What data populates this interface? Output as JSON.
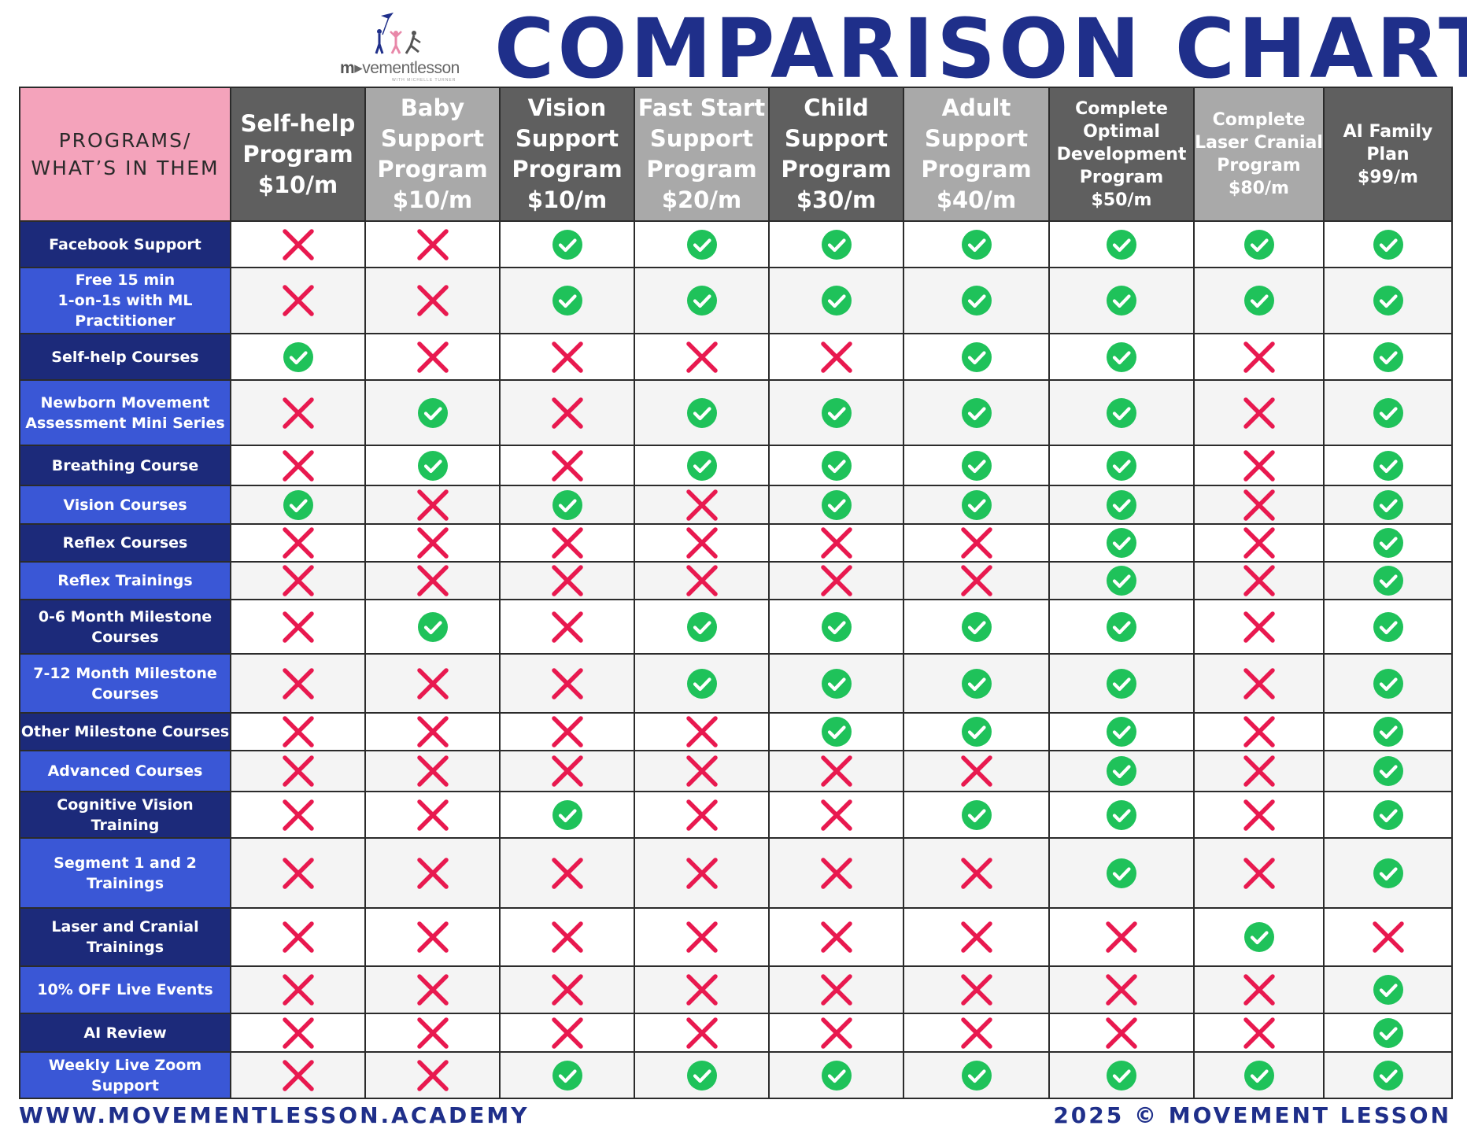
{
  "logo": {
    "brand_prefix": "m",
    "brand_rest": "vementlesson",
    "tagline": "WITH MICHELLE TURNER"
  },
  "title": "COMPARISON CHART",
  "corner_header": [
    "PROGRAMS/",
    "WHAT’S IN THEM"
  ],
  "plans": [
    {
      "lines": [
        "Self-help",
        "Program",
        "$10/m"
      ],
      "shade": "dark"
    },
    {
      "lines": [
        "Baby",
        "Support",
        "Program",
        "$10/m"
      ],
      "shade": "light"
    },
    {
      "lines": [
        "Vision",
        "Support",
        "Program",
        "$10/m"
      ],
      "shade": "dark"
    },
    {
      "lines": [
        "Fast Start",
        "Support",
        "Program",
        "$20/m"
      ],
      "shade": "light"
    },
    {
      "lines": [
        "Child",
        "Support",
        "Program",
        "$30/m"
      ],
      "shade": "dark"
    },
    {
      "lines": [
        "Adult",
        "Support",
        "Program",
        "$40/m"
      ],
      "shade": "light"
    },
    {
      "lines": [
        "Complete",
        "Optimal",
        "Development",
        "Program",
        "$50/m"
      ],
      "shade": "dark"
    },
    {
      "lines": [
        "Complete",
        "Laser Cranial",
        "Program",
        "$80/m"
      ],
      "shade": "light"
    },
    {
      "lines": [
        "AI Family",
        "Plan",
        "$99/m"
      ],
      "shade": "dark"
    }
  ],
  "features": [
    {
      "lines": [
        "Facebook Support"
      ],
      "values": [
        0,
        0,
        1,
        1,
        1,
        1,
        1,
        1,
        1
      ]
    },
    {
      "lines": [
        "Free 15 min",
        "1-on-1s with ML",
        "Practitioner"
      ],
      "values": [
        0,
        0,
        1,
        1,
        1,
        1,
        1,
        1,
        1
      ]
    },
    {
      "lines": [
        "Self-help Courses"
      ],
      "values": [
        1,
        0,
        0,
        0,
        0,
        1,
        1,
        0,
        1
      ]
    },
    {
      "lines": [
        "Newborn Movement",
        "Assessment Mini Series"
      ],
      "values": [
        0,
        1,
        0,
        1,
        1,
        1,
        1,
        0,
        1
      ]
    },
    {
      "lines": [
        "Breathing Course"
      ],
      "values": [
        0,
        1,
        0,
        1,
        1,
        1,
        1,
        0,
        1
      ]
    },
    {
      "lines": [
        "Vision Courses"
      ],
      "values": [
        1,
        0,
        1,
        0,
        1,
        1,
        1,
        0,
        1
      ]
    },
    {
      "lines": [
        "Reflex Courses"
      ],
      "values": [
        0,
        0,
        0,
        0,
        0,
        0,
        1,
        0,
        1
      ]
    },
    {
      "lines": [
        "Reflex Trainings"
      ],
      "values": [
        0,
        0,
        0,
        0,
        0,
        0,
        1,
        0,
        1
      ]
    },
    {
      "lines": [
        "0-6 Month Milestone",
        "Courses"
      ],
      "values": [
        0,
        1,
        0,
        1,
        1,
        1,
        1,
        0,
        1
      ]
    },
    {
      "lines": [
        "7-12 Month Milestone",
        "Courses"
      ],
      "values": [
        0,
        0,
        0,
        1,
        1,
        1,
        1,
        0,
        1
      ]
    },
    {
      "lines": [
        "Other Milestone Courses"
      ],
      "values": [
        0,
        0,
        0,
        0,
        1,
        1,
        1,
        0,
        1
      ]
    },
    {
      "lines": [
        "Advanced Courses"
      ],
      "values": [
        0,
        0,
        0,
        0,
        0,
        0,
        1,
        0,
        1
      ]
    },
    {
      "lines": [
        "Cognitive Vision Training"
      ],
      "values": [
        0,
        0,
        1,
        0,
        0,
        1,
        1,
        0,
        1
      ]
    },
    {
      "lines": [
        "Segment 1 and 2",
        "Trainings"
      ],
      "values": [
        0,
        0,
        0,
        0,
        0,
        0,
        1,
        0,
        1
      ]
    },
    {
      "lines": [
        "Laser and Cranial",
        "Trainings"
      ],
      "values": [
        0,
        0,
        0,
        0,
        0,
        0,
        0,
        1,
        0
      ]
    },
    {
      "lines": [
        "10% OFF Live Events"
      ],
      "values": [
        0,
        0,
        0,
        0,
        0,
        0,
        0,
        0,
        1
      ]
    },
    {
      "lines": [
        "AI Review"
      ],
      "values": [
        0,
        0,
        0,
        0,
        0,
        0,
        0,
        0,
        1
      ]
    },
    {
      "lines": [
        "Weekly Live Zoom",
        "Support"
      ],
      "values": [
        0,
        0,
        1,
        1,
        1,
        1,
        1,
        1,
        1
      ]
    }
  ],
  "icons": {
    "included": "check-circle-icon",
    "excluded": "cross-icon"
  },
  "colors": {
    "title": "#1f2f8a",
    "check": "#1fc25a",
    "cross": "#e8194f",
    "corner": "#f4a3bb",
    "feature_dark": "#1c2a7a",
    "feature_light": "#3a57d6",
    "plan_dark": "#5f5f5f",
    "plan_light": "#a9a9a9"
  },
  "footer": {
    "left": "WWW.MOVEMENTLESSON.ACADEMY",
    "right": "2025 © MOVEMENT LESSON"
  }
}
